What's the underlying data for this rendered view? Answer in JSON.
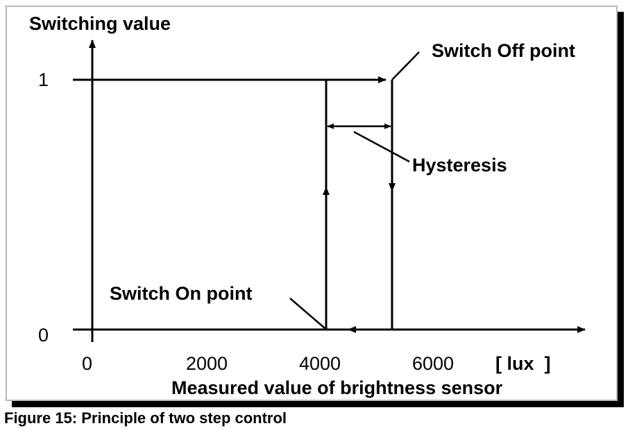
{
  "figure": {
    "caption": "Figure 15: Principle of two step control"
  },
  "diagram": {
    "y_axis_label": "Switching value",
    "x_axis_label": "Measured value of brightness sensor",
    "x_unit": "[ lux  ]",
    "y_ticks": [
      "1",
      "0"
    ],
    "x_ticks": [
      "0",
      "2000",
      "4000",
      "6000"
    ],
    "annotations": {
      "switch_off_point": "Switch Off point",
      "switch_on_point": "Switch On point",
      "hysteresis": "Hysteresis"
    }
  },
  "colors": {
    "line": "#000000",
    "frame_border": "#b8b8b8",
    "shadow": "#000000",
    "background": "#ffffff"
  }
}
